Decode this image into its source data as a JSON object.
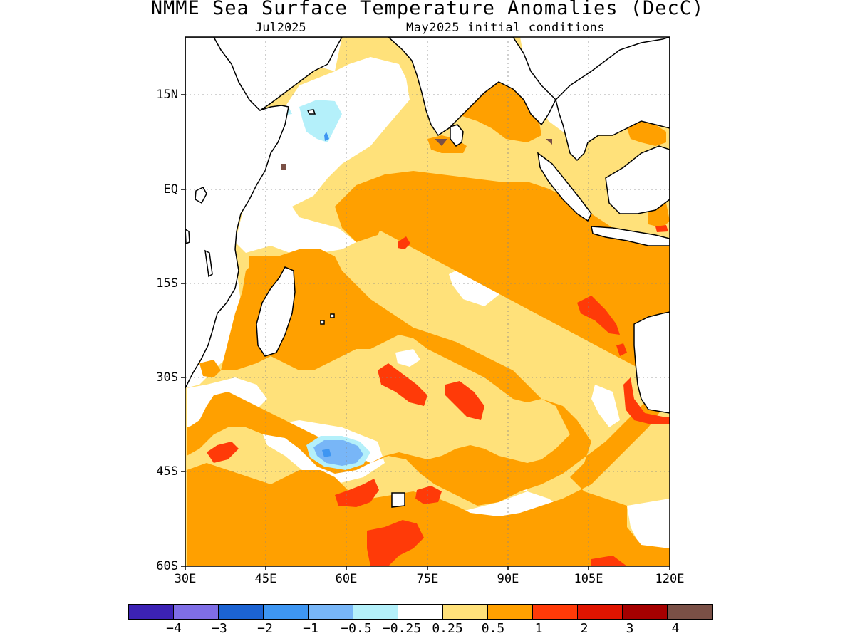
{
  "title": "NMME Sea Surface Temperature Anomalies (DecC)",
  "subtitle_left": "Jul2025",
  "subtitle_right": "May2025 initial conditions",
  "lat_labels": [
    "15N",
    "EQ",
    "15S",
    "30S",
    "45S",
    "60S"
  ],
  "lon_labels": [
    "30E",
    "45E",
    "60E",
    "75E",
    "90E",
    "105E",
    "120E"
  ],
  "colorbar": {
    "colors": [
      "#3c22b4",
      "#7f6ee6",
      "#1c63d2",
      "#3e96f2",
      "#78b6f7",
      "#b4f0fa",
      "#ffffff",
      "#ffe17a",
      "#ffa000",
      "#ff3a08",
      "#e01400",
      "#a50000",
      "#7a5046"
    ],
    "labels": [
      "−4",
      "−3",
      "−2",
      "−1",
      "−0.5",
      "−0.25",
      "0.25",
      "0.5",
      "1",
      "2",
      "3",
      "4"
    ]
  },
  "colors": {
    "pale_yellow": "#ffe17a",
    "orange": "#ffa000",
    "red_orange": "#ff3a08",
    "light_blue": "#b4f0fa",
    "mid_blue": "#78b6f7",
    "blue": "#3e96f2",
    "brown": "#7a5046"
  }
}
